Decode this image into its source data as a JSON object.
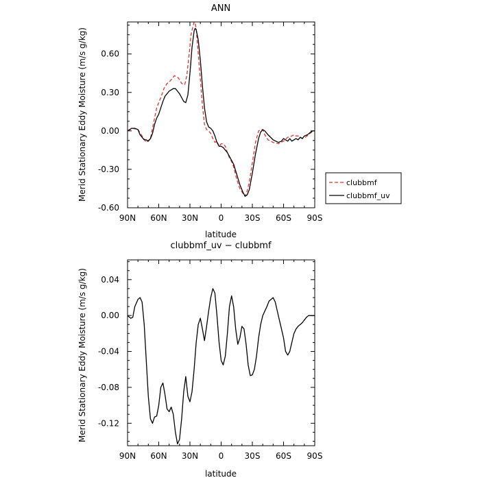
{
  "chart_data": [
    {
      "type": "line",
      "title": "ANN",
      "xlabel": "latitude",
      "ylabel": "Merid Stationary Eddy Moisture (m/s g/kg)",
      "xlim": [
        90,
        -90
      ],
      "ylim": [
        -0.6,
        0.85
      ],
      "x_tick_values": [
        90,
        60,
        30,
        0,
        -30,
        -60,
        -90
      ],
      "x_tick_labels": [
        "90N",
        "60N",
        "30N",
        "0",
        "30S",
        "60S",
        "90S"
      ],
      "y_tick_values": [
        0.6,
        0.3,
        0.0,
        -0.3,
        -0.6
      ],
      "y_tick_labels": [
        "0.60",
        "0.30",
        "0.00",
        "-0.30",
        "-0.60"
      ],
      "legend_position": "right",
      "series": [
        {
          "name": "clubbmf",
          "color": "#e8302a",
          "dash": "dashed",
          "x": [
            90,
            85,
            80,
            76,
            72,
            68,
            65,
            62,
            58,
            55,
            52,
            50,
            48,
            45,
            42,
            40,
            38,
            35,
            33,
            31,
            29,
            27,
            26,
            25,
            24,
            23,
            22,
            20,
            18,
            16,
            14,
            12,
            10,
            8,
            6,
            4,
            2,
            0,
            -2,
            -4,
            -6,
            -8,
            -10,
            -12,
            -15,
            -18,
            -21,
            -23,
            -25,
            -27,
            -30,
            -33,
            -36,
            -38,
            -40,
            -42,
            -45,
            -50,
            -55,
            -60,
            -64,
            -68,
            -70,
            -72,
            -75,
            -78,
            -81,
            -84,
            -87,
            -90
          ],
          "y": [
            0.0,
            0.02,
            0.01,
            -0.04,
            -0.09,
            -0.06,
            0.06,
            0.18,
            0.26,
            0.33,
            0.37,
            0.38,
            0.4,
            0.43,
            0.42,
            0.4,
            0.37,
            0.36,
            0.43,
            0.58,
            0.75,
            0.82,
            0.85,
            0.84,
            0.8,
            0.7,
            0.6,
            0.4,
            0.2,
            0.05,
            0.01,
            0.0,
            -0.02,
            -0.06,
            -0.09,
            -0.08,
            -0.12,
            -0.1,
            -0.1,
            -0.12,
            -0.17,
            -0.21,
            -0.24,
            -0.28,
            -0.38,
            -0.45,
            -0.49,
            -0.51,
            -0.47,
            -0.4,
            -0.25,
            -0.09,
            0.0,
            0.01,
            0.01,
            -0.03,
            -0.07,
            -0.09,
            -0.1,
            -0.08,
            -0.05,
            -0.04,
            -0.03,
            -0.04,
            -0.04,
            -0.06,
            -0.05,
            -0.03,
            -0.01,
            0.0
          ]
        },
        {
          "name": "clubbmf_uv",
          "color": "#000000",
          "dash": "solid",
          "x": [
            90,
            86,
            83,
            80,
            78,
            76,
            74,
            72,
            70,
            68,
            66,
            64,
            62,
            60,
            58,
            56,
            54,
            52,
            50,
            48,
            46,
            44,
            42,
            40,
            38,
            36,
            34,
            32,
            30,
            28,
            26,
            25,
            24,
            22,
            20,
            18,
            16,
            14,
            12,
            10,
            8,
            6,
            4,
            2,
            0,
            -2,
            -4,
            -6,
            -8,
            -10,
            -12,
            -15,
            -18,
            -21,
            -23,
            -25,
            -27,
            -30,
            -33,
            -36,
            -38,
            -40,
            -42,
            -45,
            -50,
            -55,
            -58,
            -60,
            -62,
            -64,
            -66,
            -68,
            -70,
            -72,
            -74,
            -76,
            -78,
            -80,
            -83,
            -86,
            -88,
            -90
          ],
          "y": [
            0.0,
            0.02,
            0.02,
            0.01,
            -0.03,
            -0.05,
            -0.07,
            -0.07,
            -0.08,
            -0.06,
            -0.02,
            0.05,
            0.1,
            0.13,
            0.18,
            0.23,
            0.27,
            0.29,
            0.31,
            0.32,
            0.33,
            0.33,
            0.31,
            0.29,
            0.26,
            0.23,
            0.22,
            0.28,
            0.45,
            0.65,
            0.78,
            0.8,
            0.79,
            0.71,
            0.55,
            0.35,
            0.18,
            0.07,
            0.03,
            0.02,
            0.0,
            -0.04,
            -0.09,
            -0.12,
            -0.12,
            -0.13,
            -0.15,
            -0.17,
            -0.2,
            -0.23,
            -0.26,
            -0.34,
            -0.42,
            -0.48,
            -0.51,
            -0.5,
            -0.46,
            -0.33,
            -0.18,
            -0.06,
            -0.01,
            0.01,
            0.0,
            -0.03,
            -0.07,
            -0.09,
            -0.08,
            -0.06,
            -0.07,
            -0.08,
            -0.06,
            -0.08,
            -0.07,
            -0.06,
            -0.07,
            -0.05,
            -0.06,
            -0.04,
            -0.03,
            -0.01,
            0.0,
            0.0
          ]
        }
      ]
    },
    {
      "type": "line",
      "title": "clubbmf_uv  −  clubbmf",
      "xlabel": "latitude",
      "ylabel": "Merid Stationary Eddy Moisture (m/s g/kg)",
      "xlim": [
        90,
        -90
      ],
      "ylim": [
        -0.145,
        0.062
      ],
      "x_tick_values": [
        90,
        60,
        30,
        0,
        -30,
        -60,
        -90
      ],
      "x_tick_labels": [
        "90N",
        "60N",
        "30N",
        "0",
        "30S",
        "60S",
        "90S"
      ],
      "y_tick_values": [
        0.04,
        0.0,
        -0.04,
        -0.08,
        -0.12
      ],
      "y_tick_labels": [
        "0.04",
        "0.00",
        "-0.04",
        "-0.08",
        "-0.12"
      ],
      "series": [
        {
          "color": "#000000",
          "dash": "solid",
          "x": [
            90,
            87,
            85,
            83,
            80,
            78,
            76,
            74,
            72,
            70,
            68,
            66,
            64,
            62,
            60,
            58,
            56,
            54,
            52,
            50,
            48,
            46,
            44,
            42,
            40,
            38,
            36,
            34,
            32,
            30,
            28,
            26,
            24,
            22,
            20,
            18,
            16,
            14,
            12,
            10,
            8,
            6,
            4,
            2,
            0,
            -2,
            -4,
            -6,
            -8,
            -10,
            -12,
            -14,
            -16,
            -18,
            -20,
            -22,
            -24,
            -26,
            -28,
            -30,
            -32,
            -34,
            -36,
            -38,
            -40,
            -42,
            -44,
            -46,
            -48,
            -50,
            -52,
            -54,
            -56,
            -58,
            -60,
            -62,
            -64,
            -66,
            -68,
            -70,
            -72,
            -74,
            -76,
            -78,
            -80,
            -82,
            -84,
            -86,
            -88,
            -90
          ],
          "y": [
            0.0,
            -0.003,
            -0.002,
            0.01,
            0.018,
            0.02,
            0.015,
            -0.01,
            -0.05,
            -0.09,
            -0.115,
            -0.12,
            -0.113,
            -0.112,
            -0.1,
            -0.08,
            -0.075,
            -0.088,
            -0.104,
            -0.107,
            -0.102,
            -0.11,
            -0.13,
            -0.143,
            -0.138,
            -0.115,
            -0.085,
            -0.068,
            -0.09,
            -0.096,
            -0.085,
            -0.06,
            -0.03,
            -0.01,
            -0.003,
            -0.015,
            -0.028,
            -0.012,
            0.005,
            0.02,
            0.03,
            0.025,
            0.0,
            -0.03,
            -0.05,
            -0.055,
            -0.045,
            -0.02,
            0.01,
            0.022,
            0.01,
            -0.015,
            -0.032,
            -0.025,
            -0.012,
            -0.015,
            -0.032,
            -0.055,
            -0.067,
            -0.066,
            -0.06,
            -0.045,
            -0.025,
            -0.01,
            0.0,
            0.005,
            0.01,
            0.016,
            0.018,
            0.02,
            0.015,
            0.005,
            -0.005,
            -0.015,
            -0.025,
            -0.04,
            -0.044,
            -0.04,
            -0.03,
            -0.02,
            -0.015,
            -0.012,
            -0.01,
            -0.008,
            -0.005,
            -0.002,
            0.0,
            0.0,
            0.0,
            0.0
          ]
        }
      ]
    }
  ]
}
